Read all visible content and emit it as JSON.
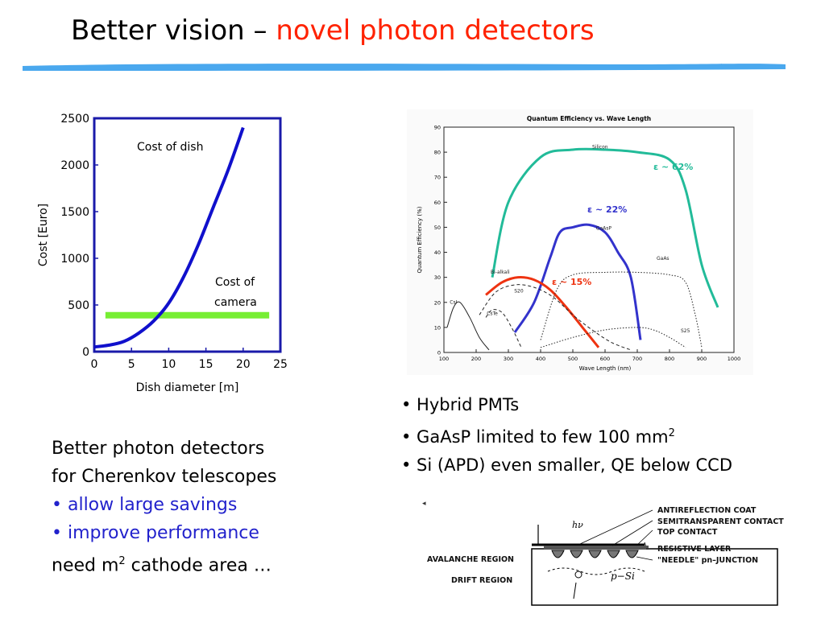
{
  "slide": {
    "title_black": "Better vision –",
    "title_red": "novel photon detectors"
  },
  "cost_chart": {
    "chart_data": {
      "type": "line",
      "xlabel": "Dish diameter [m]",
      "ylabel": "Cost [Euro]",
      "xlim": [
        0,
        25
      ],
      "ylim": [
        0,
        2500
      ],
      "xticks": [
        "0",
        "5",
        "10",
        "15",
        "20",
        "25"
      ],
      "yticks": [
        "0",
        "500",
        "1000",
        "1500",
        "2000",
        "2500"
      ],
      "series": [
        {
          "name": "Cost of dish",
          "color": "#1010cc",
          "x": [
            0,
            2,
            4,
            6,
            8,
            10,
            12,
            14,
            16,
            18,
            20
          ],
          "y": [
            50,
            70,
            110,
            200,
            330,
            520,
            800,
            1150,
            1550,
            1950,
            2400
          ]
        },
        {
          "name": "Cost of camera",
          "color": "#77ee33",
          "x": [
            1.5,
            23.5
          ],
          "y": [
            390,
            390
          ]
        }
      ],
      "annotations": [
        "Cost of dish",
        "Cost of camera"
      ]
    }
  },
  "qe_chart": {
    "chart_data": {
      "type": "line",
      "title": "Quantum Efficiency vs. Wave Length",
      "xlabel": "Wave Length (nm)",
      "ylabel": "Quantum Efficiency (%)",
      "xlim": [
        100,
        1000
      ],
      "ylim": [
        0,
        90
      ],
      "xticks": [
        "100",
        "200",
        "300",
        "400",
        "500",
        "600",
        "700",
        "800",
        "900",
        "1000"
      ],
      "yticks": [
        "0",
        "10",
        "20",
        "30",
        "40",
        "50",
        "60",
        "70",
        "80",
        "90"
      ],
      "series": [
        {
          "name": "Silicon",
          "color": "#22bb99",
          "style": "solid",
          "x": [
            250,
            300,
            400,
            500,
            600,
            700,
            800,
            850,
            900,
            950
          ],
          "y": [
            30,
            60,
            78,
            81,
            81,
            80,
            77,
            65,
            35,
            18
          ]
        },
        {
          "name": "GaAsP",
          "color": "#3333cc",
          "style": "solid",
          "x": [
            320,
            380,
            430,
            460,
            500,
            550,
            600,
            640,
            680,
            710
          ],
          "y": [
            8,
            20,
            38,
            48,
            50,
            51,
            48,
            40,
            30,
            5
          ]
        },
        {
          "name": "Bi-alkali",
          "color": "#ee3311",
          "style": "solid",
          "x": [
            230,
            280,
            330,
            380,
            430,
            480,
            530,
            580
          ],
          "y": [
            23,
            28,
            30,
            29,
            25,
            18,
            10,
            2
          ]
        },
        {
          "name": "S20",
          "color": "#222222",
          "style": "dashed",
          "x": [
            210,
            260,
            320,
            380,
            440,
            500,
            560,
            620,
            680
          ],
          "y": [
            15,
            24,
            27,
            26,
            22,
            15,
            9,
            4,
            1
          ]
        },
        {
          "name": "GaAs",
          "color": "#222222",
          "style": "dotted",
          "x": [
            400,
            450,
            500,
            600,
            700,
            800,
            850,
            880,
            900
          ],
          "y": [
            5,
            25,
            31,
            32,
            32,
            31,
            28,
            15,
            2
          ]
        },
        {
          "name": "CsTe",
          "color": "#222222",
          "style": "dashed",
          "x": [
            230,
            250,
            280,
            310,
            340
          ],
          "y": [
            14,
            17,
            16,
            10,
            2
          ]
        },
        {
          "name": "CsI",
          "color": "#222222",
          "style": "solid",
          "x": [
            110,
            130,
            150,
            180,
            210,
            240
          ],
          "y": [
            10,
            18,
            20,
            14,
            6,
            1
          ]
        },
        {
          "name": "S25",
          "color": "#222222",
          "style": "dotted",
          "x": [
            400,
            500,
            600,
            700,
            750,
            800,
            850
          ],
          "y": [
            2,
            6,
            9,
            10,
            9,
            6,
            2
          ]
        }
      ],
      "annotations": [
        "ε ~ 62%",
        "ε ~ 22%",
        "ε ~ 15%",
        "Silicon",
        "GaAsP",
        "GaAs",
        "Bi-alkali",
        "S20",
        "S25",
        "CsI",
        "CsTe"
      ]
    }
  },
  "right_bullets": [
    "• Hybrid PMTs",
    "• GaAsP limited to few 100 mm",
    "• Si (APD) even smaller, QE below CCD"
  ],
  "right_bullets_sup": "2",
  "left_text": {
    "line1": "Better photon detectors",
    "line2": "for Cherenkov telescopes",
    "bullet1": "• allow large savings",
    "bullet2": "• improve performance",
    "line5a": "need m",
    "line5sup": "2",
    "line5b": " cathode area …"
  },
  "apd_diagram": {
    "labels": {
      "antireflection": "ANTIREFLECTION COAT",
      "semitransparent": "SEMITRANSPARENT CONTACT",
      "top_contact": "TOP CONTACT",
      "resistive": "RESISTIVE LAYER",
      "needle": "\"NEEDLE\" pn–JUNCTION",
      "avalanche": "AVALANCHE REGION",
      "drift": "DRIFT REGION",
      "hv": "hν",
      "psi": "p−Si"
    }
  }
}
